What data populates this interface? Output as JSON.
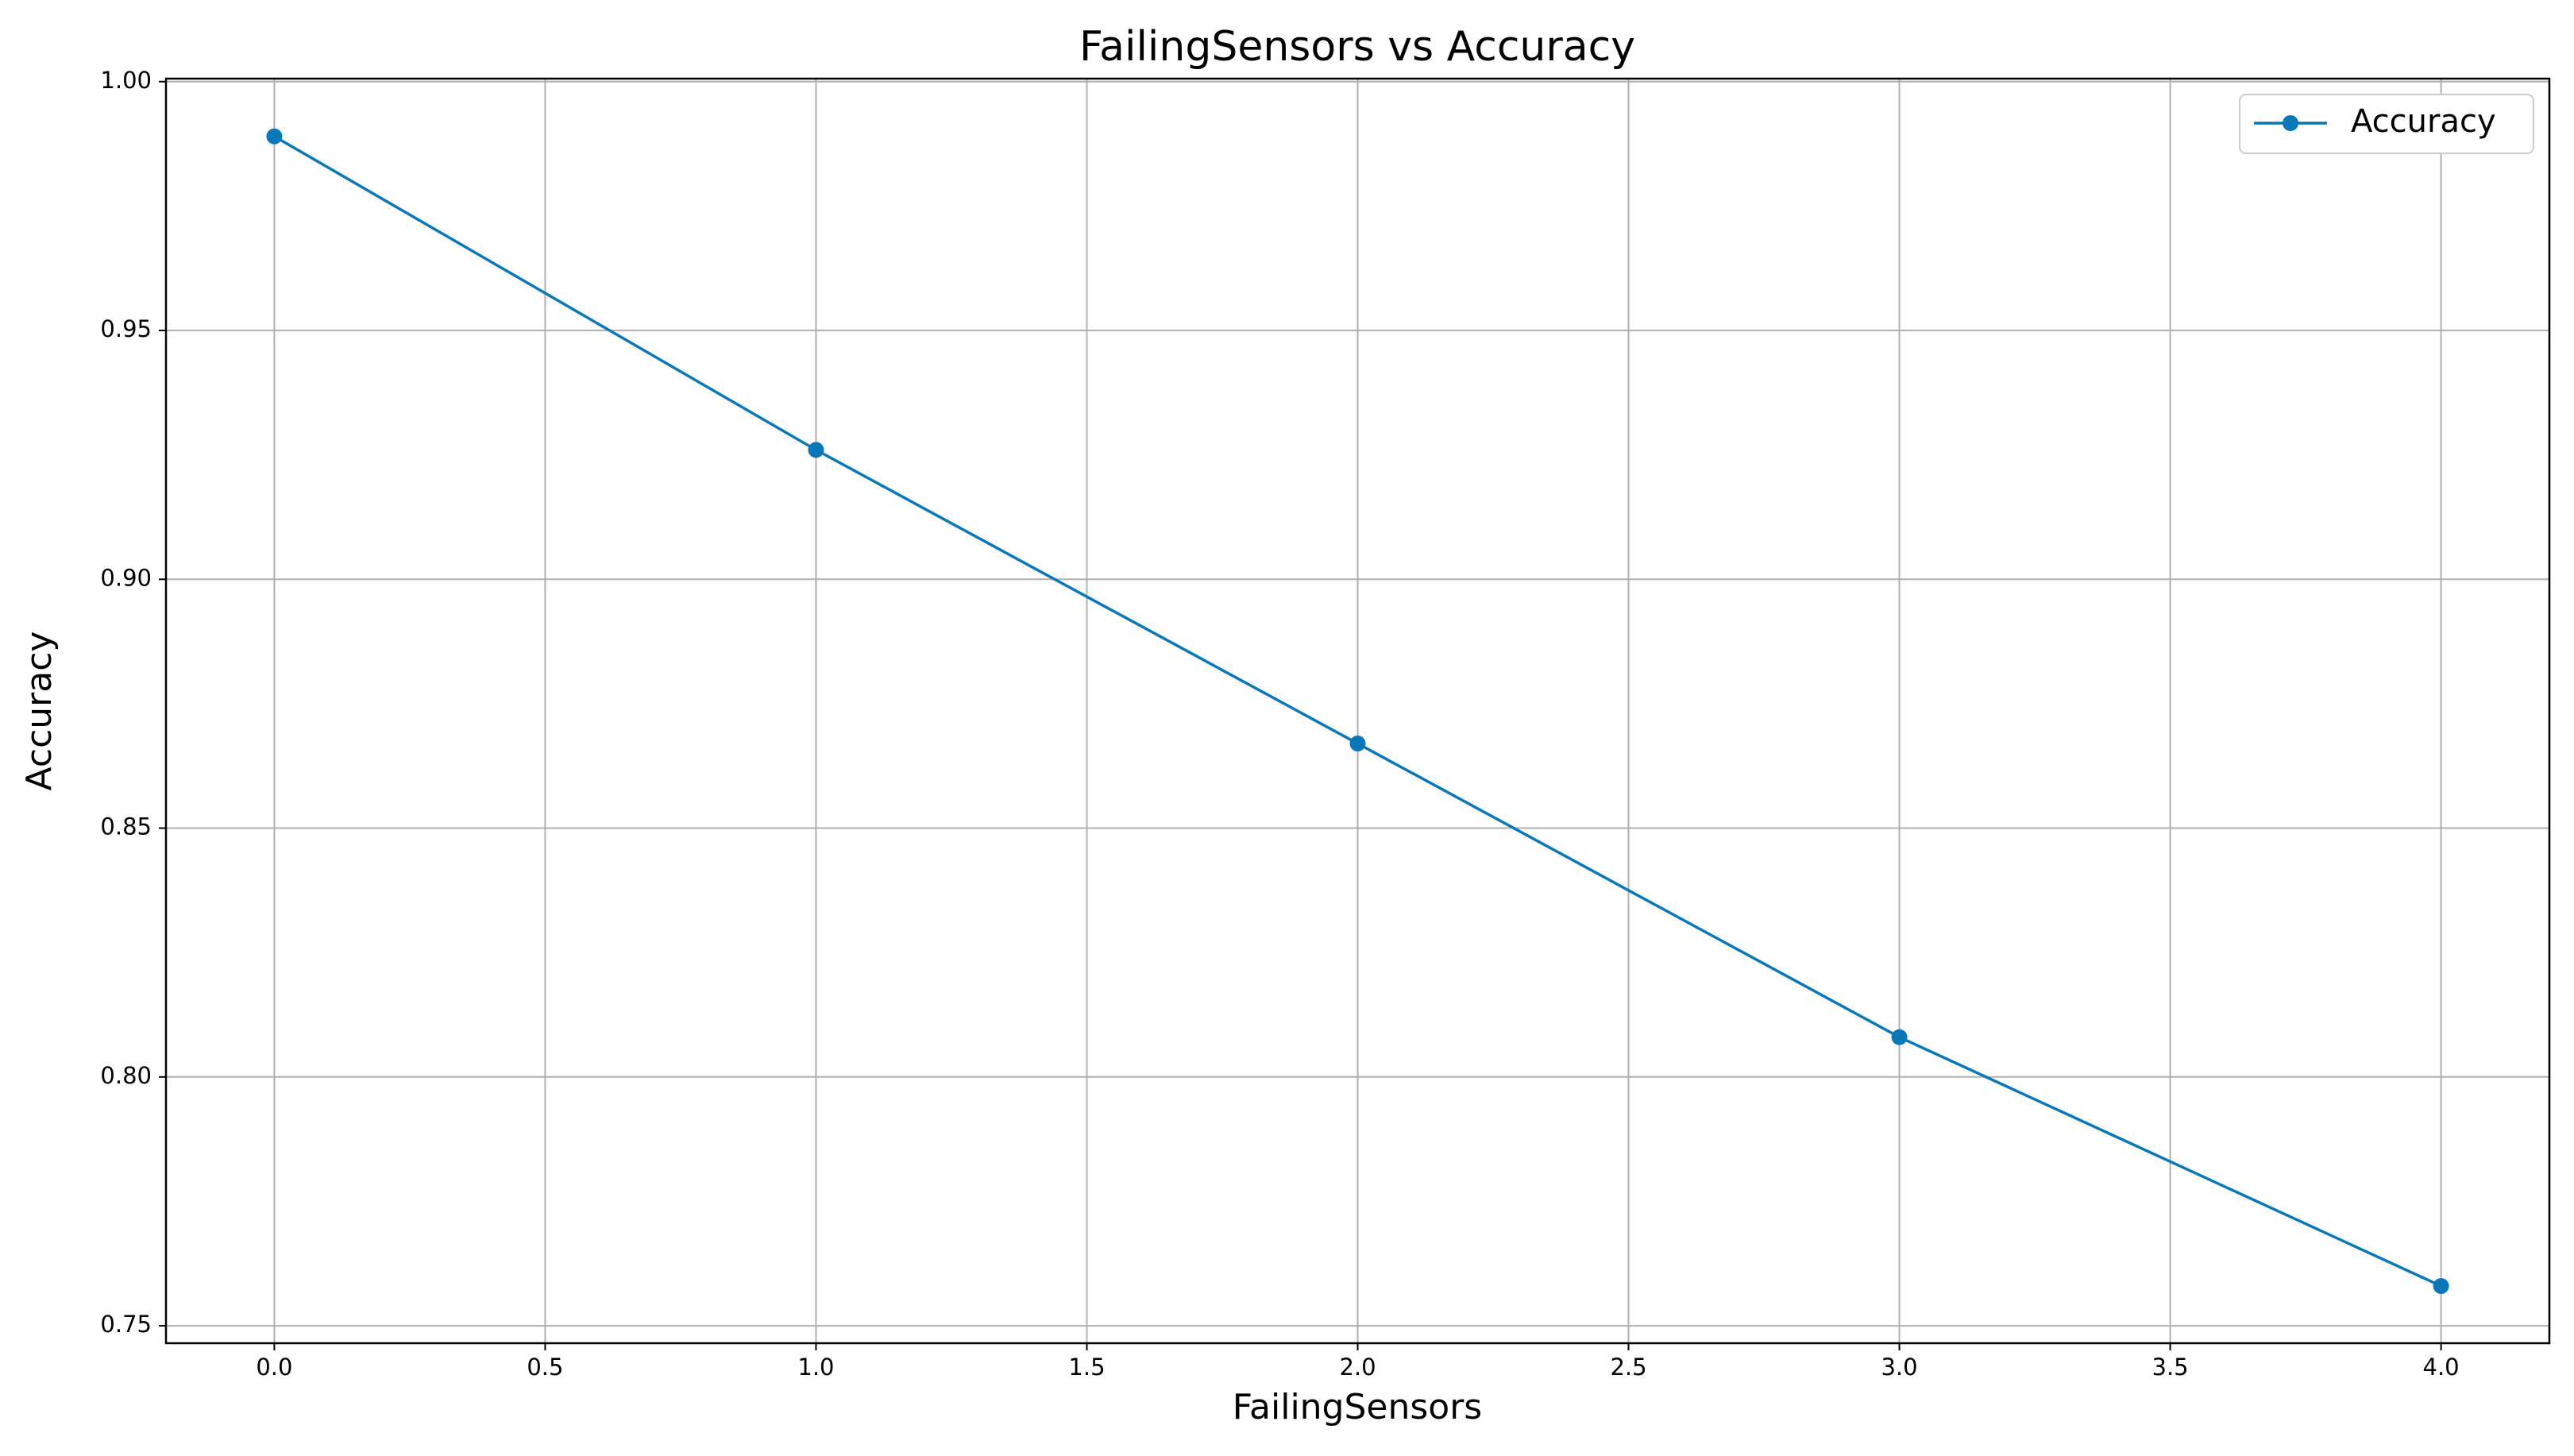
{
  "chart_data": {
    "type": "line",
    "title": "FailingSensors vs Accuracy",
    "x_label": "FailingSensors",
    "y_label": "Accuracy",
    "x": [
      0,
      1,
      2,
      3,
      4
    ],
    "series": [
      {
        "name": "Accuracy",
        "color": "#0a77b8",
        "values": [
          0.989,
          0.926,
          0.867,
          0.808,
          0.758
        ]
      }
    ],
    "xlim": [
      -0.2,
      4.2
    ],
    "ylim": [
      0.7465,
      1.0006
    ],
    "xticks": [
      {
        "value": 0,
        "label": "0.0"
      },
      0.5,
      {
        "value": 1,
        "label": "1.0"
      },
      1.5,
      {
        "value": 2,
        "label": "2.0"
      },
      2.5,
      {
        "value": 3,
        "label": "3.0"
      },
      3.5,
      {
        "value": 4,
        "label": "4.0"
      }
    ],
    "yticks": [
      0.75,
      {
        "value": 0.8,
        "label": "0.80"
      },
      0.85,
      {
        "value": 0.9,
        "label": "0.90"
      },
      0.95,
      {
        "value": 1,
        "label": "1.00"
      }
    ],
    "grid": true,
    "legend": "upper-right",
    "marker": "circle"
  }
}
